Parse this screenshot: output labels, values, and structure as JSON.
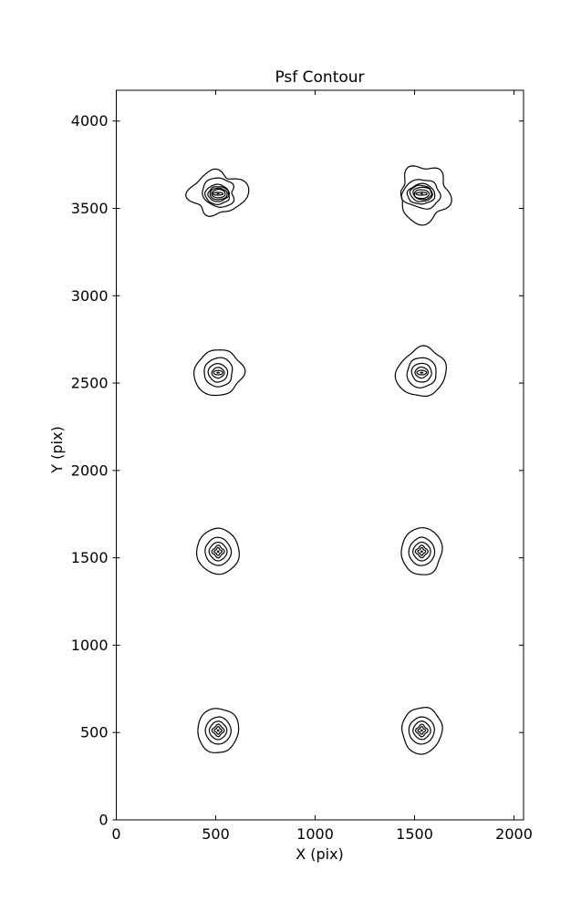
{
  "chart_data": {
    "type": "contour",
    "title": "Psf Contour",
    "xlabel": "X (pix)",
    "ylabel": "Y (pix)",
    "xlim": [
      0,
      2048
    ],
    "ylim": [
      0,
      4176
    ],
    "x_ticks": [
      0,
      500,
      1000,
      1500,
      2000
    ],
    "y_ticks": [
      0,
      500,
      1000,
      1500,
      2000,
      2500,
      3000,
      3500,
      4000
    ],
    "grid": false,
    "legend": "none",
    "line_color": "#000000",
    "background": "#ffffff",
    "psf_spots": [
      {
        "x": 512,
        "y": 3584,
        "outer_radius": 128,
        "style": "irregular",
        "seed": 7
      },
      {
        "x": 1536,
        "y": 3584,
        "outer_radius": 138,
        "style": "irregular",
        "seed": 13
      },
      {
        "x": 512,
        "y": 2560,
        "outer_radius": 118,
        "style": "medium",
        "seed": 3
      },
      {
        "x": 1536,
        "y": 2560,
        "outer_radius": 122,
        "style": "medium",
        "seed": 5
      },
      {
        "x": 512,
        "y": 1536,
        "outer_radius": 104,
        "style": "regular",
        "seed": 11
      },
      {
        "x": 1536,
        "y": 1536,
        "outer_radius": 104,
        "style": "regular",
        "seed": 17
      },
      {
        "x": 512,
        "y": 512,
        "outer_radius": 102,
        "style": "regular",
        "seed": 23
      },
      {
        "x": 1536,
        "y": 512,
        "outer_radius": 102,
        "style": "regular",
        "seed": 29
      }
    ],
    "contour_styles": {
      "irregular": {
        "levels": [
          1,
          0.65,
          0.47,
          0.385,
          0.315,
          0.245,
          0.13
        ],
        "noise": [
          1.0,
          0.45,
          0.3,
          0.25,
          0.22,
          0.2,
          0.15
        ],
        "ex": [
          1.0,
          1.0,
          1.03,
          1.05,
          1.07,
          1.1,
          1.55
        ],
        "ey": [
          0.9,
          0.85,
          0.8,
          0.76,
          0.72,
          0.66,
          0.42
        ],
        "diamond": [
          0,
          0,
          0,
          0,
          0,
          0,
          0
        ],
        "base_noise": 0.115,
        "jitter": 0.1,
        "center_dot": 1.0
      },
      "medium": {
        "levels": [
          1,
          0.62,
          0.41,
          0.25,
          0.15
        ],
        "noise": [
          1.0,
          0.5,
          0.35,
          0.3,
          0.25
        ],
        "ex": [
          1.0,
          1.0,
          1.0,
          1.05,
          1.3
        ],
        "ey": [
          1.0,
          0.98,
          0.95,
          0.88,
          0.62
        ],
        "diamond": [
          0,
          0,
          0,
          0.04,
          0
        ],
        "base_noise": 0.05,
        "jitter": 0.03,
        "center_dot": 1.5
      },
      "regular": {
        "levels": [
          1,
          0.62,
          0.42,
          0.265,
          0.155
        ],
        "noise": [
          1.0,
          0.5,
          0.35,
          0.3,
          0.25
        ],
        "ex": [
          1.0,
          1.0,
          1.0,
          1.0,
          1.0
        ],
        "ey": [
          1.12,
          1.08,
          1.04,
          1.0,
          1.0
        ],
        "diamond": [
          0,
          0.01,
          0.03,
          0.15,
          0.22
        ],
        "base_noise": 0.022,
        "jitter": 0.012,
        "center_dot": 1.3
      }
    }
  }
}
